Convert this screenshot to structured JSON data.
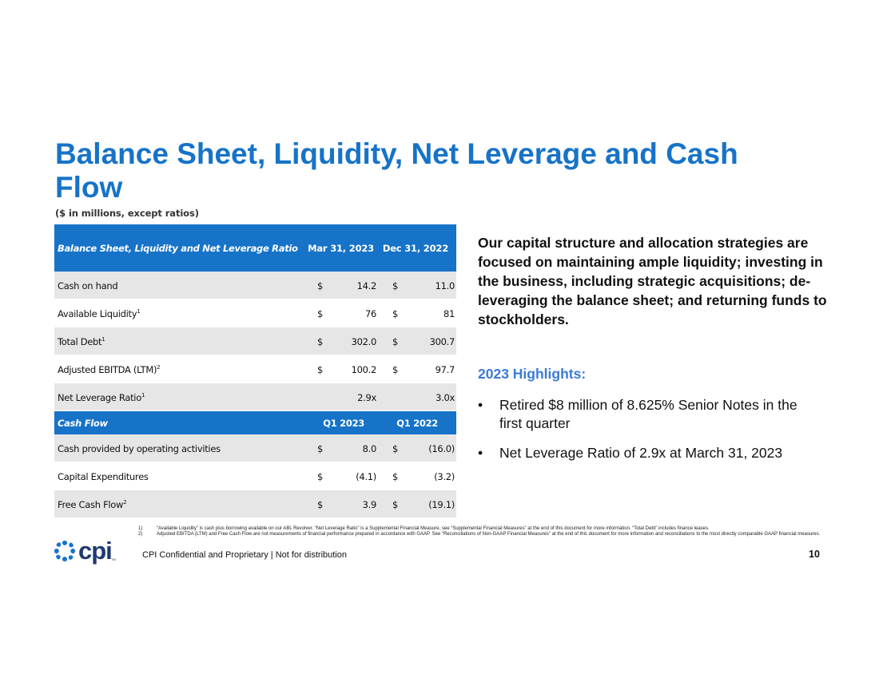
{
  "title": "Balance Sheet, Liquidity, Net Leverage and Cash Flow",
  "subtitle": "($ in millions, except ratios)",
  "table": {
    "header": {
      "label": "Balance Sheet, Liquidity and Net Leverage Ratio",
      "col1": "Mar 31, 2023",
      "col2": "Dec 31, 2022"
    },
    "rows": [
      {
        "label": "Cash on hand",
        "sup": "",
        "d1": "$",
        "v1": "14.2",
        "d2": "$",
        "v2": "11.0"
      },
      {
        "label": "Available Liquidity",
        "sup": "1",
        "d1": "$",
        "v1": "76",
        "d2": "$",
        "v2": "81"
      },
      {
        "label": "Total Debt",
        "sup": "1",
        "d1": "$",
        "v1": "302.0",
        "d2": "$",
        "v2": "300.7"
      },
      {
        "label": "Adjusted EBITDA (LTM)",
        "sup": "2",
        "d1": "$",
        "v1": "100.2",
        "d2": "$",
        "v2": "97.7"
      },
      {
        "label": "Net Leverage Ratio",
        "sup": "1",
        "d1": "",
        "v1": "2.9x",
        "d2": "",
        "v2": "3.0x"
      }
    ],
    "section": {
      "label": "Cash Flow",
      "col1": "Q1 2023",
      "col2": "Q1 2022"
    },
    "cf_rows": [
      {
        "label": "Cash provided by operating activities",
        "sup": "",
        "d1": "$",
        "v1": "8.0",
        "d2": "$",
        "v2": "(16.0)"
      },
      {
        "label": "Capital Expenditures",
        "sup": "",
        "d1": "$",
        "v1": "(4.1)",
        "d2": "$",
        "v2": "(3.2)"
      },
      {
        "label": "Free Cash Flow",
        "sup": "2",
        "d1": "$",
        "v1": "3.9",
        "d2": "$",
        "v2": "(19.1)"
      }
    ]
  },
  "side": {
    "statement": "Our capital structure and allocation strategies are focused on maintaining ample liquidity; investing in the business, including strategic acquisitions; de-leveraging the balance sheet; and returning funds to stockholders.",
    "highlights_title": "2023 Highlights:",
    "bullet_char": "•",
    "bullets": [
      "Retired $8 million of 8.625% Senior Notes in the first quarter",
      "Net Leverage Ratio of 2.9x at March 31, 2023"
    ]
  },
  "footnotes": [
    {
      "num": "1)",
      "text": "“Available Liquidity” is cash plus borrowing available on our ABL Revolver. “Net Leverage Ratio” is a Supplemental Financial Measure, see “Supplemental Financial Measures” at the end of this document for more information. “Total Debt” includes finance leases."
    },
    {
      "num": "2)",
      "text": "Adjusted EBITDA (LTM) and Free Cash Flow are not measurements of financial performance prepared in accordance with GAAP. See “Reconciliations of Non-GAAP Financial Measures” at the end of this document for more information and reconciliations to the most directly comparable GAAP financial measures."
    }
  ],
  "footer": {
    "logo_text": "cpi",
    "logo_tm": "TM",
    "confidential": "CPI Confidential and Proprietary | Not for distribution",
    "page_number": "10"
  },
  "colors": {
    "brand_blue": "#1673c8",
    "highlight_blue": "#3a7bd5",
    "logo_navy": "#1e3a6d",
    "row_shade": "#e6e6e6"
  }
}
